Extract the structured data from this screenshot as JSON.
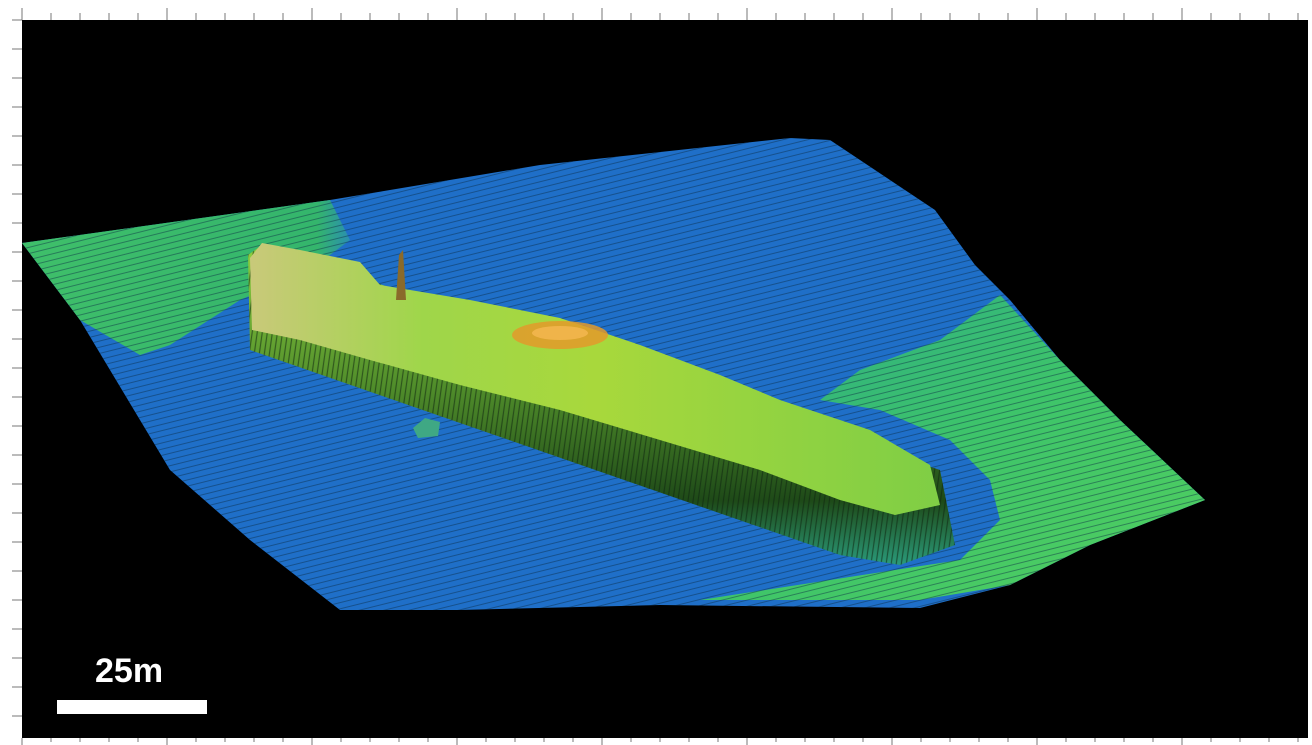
{
  "image": {
    "subject": "multibeam-sonar-bathymetry-shipwreck",
    "colors": {
      "background": "#000000",
      "frame": "#ffffff",
      "seabed_deep": "#1f6fc8",
      "seabed_shallow": "#3fc06a",
      "wreck_body": "#8fd23c",
      "wreck_peak": "#e39a2a"
    }
  },
  "scale_bar": {
    "label": "25m"
  }
}
